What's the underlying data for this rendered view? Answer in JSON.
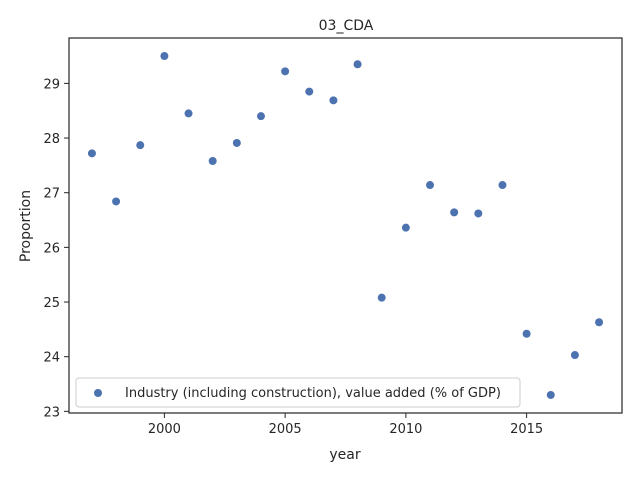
{
  "chart_data": {
    "type": "scatter",
    "title": "03_CDA",
    "xlabel": "year",
    "ylabel": "Proportion",
    "xlim": [
      1996.05,
      2018.95
    ],
    "ylim": [
      22.97,
      29.83
    ],
    "xticks": [
      2000,
      2005,
      2010,
      2015
    ],
    "yticks": [
      23,
      24,
      25,
      26,
      27,
      28,
      29
    ],
    "grid": false,
    "legend_position": "lower-left",
    "colors": {
      "series": "#4c72b0",
      "axes": "#262626",
      "legend_border": "#cccccc"
    },
    "series": [
      {
        "name": "Industry (including construction), value added (% of GDP)",
        "x": [
          1997,
          1998,
          1999,
          2000,
          2001,
          2002,
          2003,
          2004,
          2005,
          2006,
          2007,
          2008,
          2009,
          2010,
          2011,
          2012,
          2013,
          2014,
          2015,
          2016,
          2017,
          2018
        ],
        "y": [
          27.72,
          26.84,
          27.87,
          29.5,
          28.45,
          27.58,
          27.91,
          28.4,
          29.22,
          28.85,
          28.69,
          29.35,
          25.08,
          26.36,
          27.14,
          26.64,
          26.62,
          27.14,
          24.42,
          23.3,
          24.03,
          24.63
        ]
      }
    ]
  }
}
